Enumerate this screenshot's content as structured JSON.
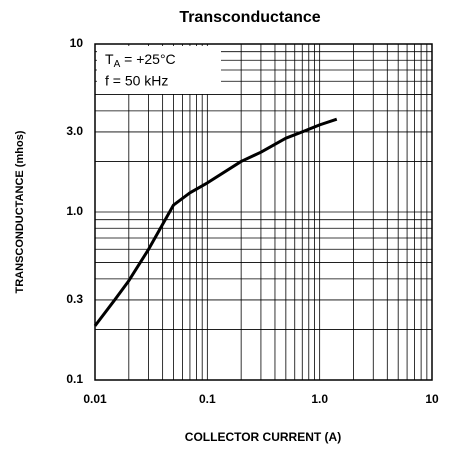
{
  "chart_data": {
    "type": "line",
    "title": "Transconductance",
    "x_label": "COLLECTOR CURRENT (A)",
    "y_label": "TRANSCONDUCTANCE (mhos)",
    "annotation_1": {
      "main": "T",
      "sub": "A",
      "rest": " = +25°C"
    },
    "annotation_2": "f = 50 kHz",
    "x": [
      0.01,
      0.015,
      0.02,
      0.03,
      0.05,
      0.07,
      0.1,
      0.2,
      0.3,
      0.5,
      0.7,
      1.0,
      1.42
    ],
    "values": [
      0.21,
      0.3,
      0.39,
      0.6,
      1.1,
      1.3,
      1.49,
      2.0,
      2.27,
      2.75,
      3.0,
      3.3,
      3.57
    ],
    "color": "#000000",
    "xscale": "log",
    "yscale": "log",
    "xlim": [
      0.01,
      10
    ],
    "ylim": [
      0.1,
      10
    ],
    "xticks": [
      0.01,
      0.1,
      {
        "value": 1,
        "label": "1.0"
      },
      10
    ],
    "yticks": [
      0.1,
      0.3,
      {
        "value": 1,
        "label": "1.0"
      },
      {
        "value": 3,
        "label": "3.0"
      },
      10
    ],
    "x_grid": [
      0.02,
      0.03,
      0.04,
      0.05,
      0.06,
      0.07,
      0.08,
      0.09,
      0.2,
      0.3,
      0.4,
      0.5,
      0.6,
      0.7,
      0.8,
      0.9,
      2,
      3,
      4,
      5,
      6,
      7,
      8,
      9
    ],
    "y_grid": [
      0.2,
      0.3,
      0.4,
      0.5,
      0.6,
      0.7,
      0.8,
      0.9,
      2,
      3,
      4,
      5,
      6,
      7,
      8,
      9
    ],
    "grid": true
  }
}
